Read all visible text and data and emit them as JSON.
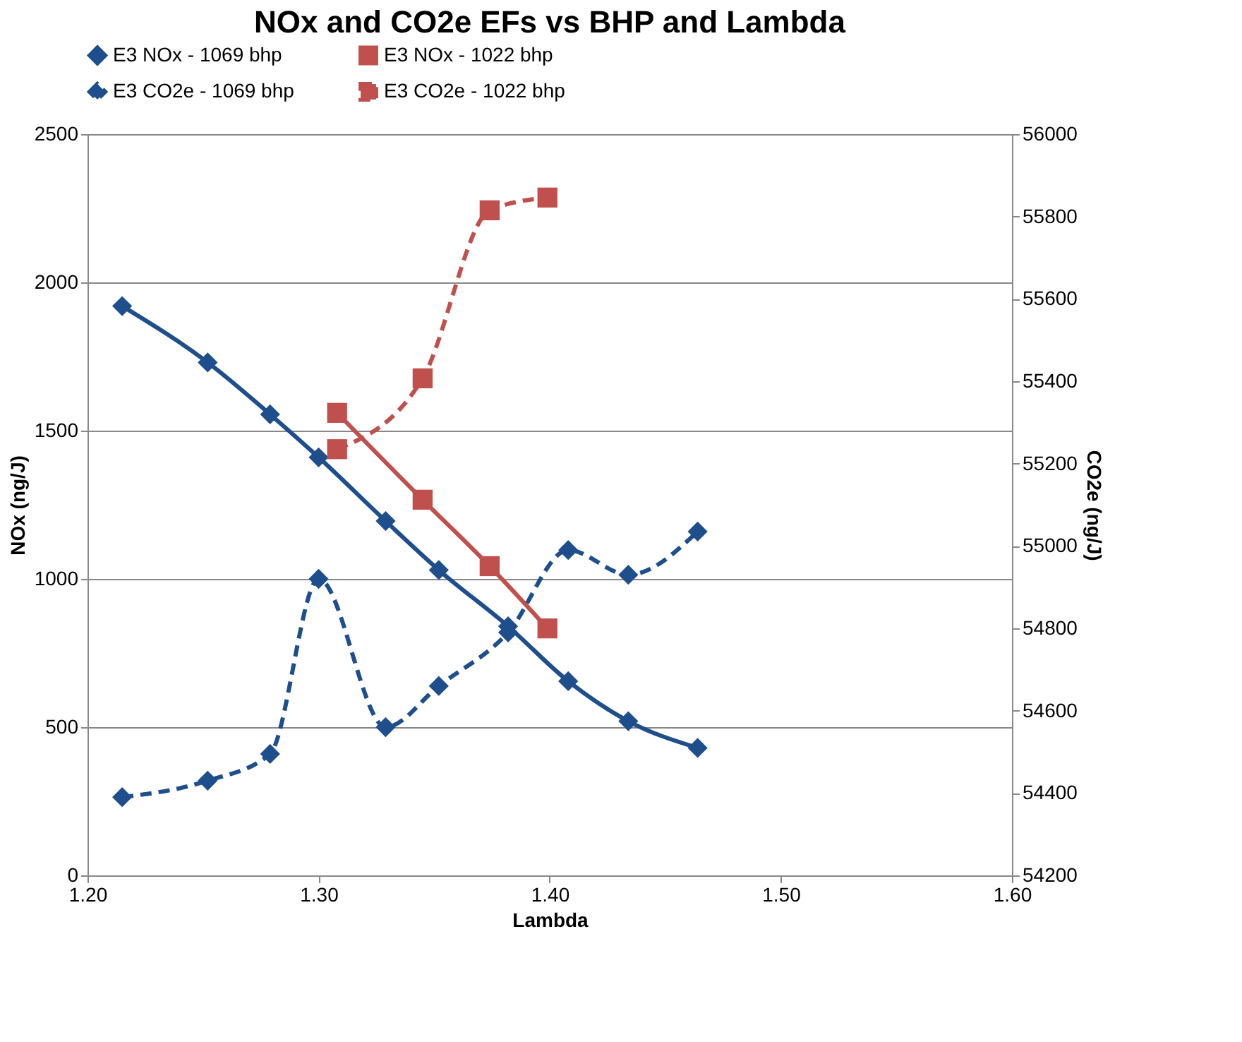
{
  "chart_data": {
    "type": "line",
    "title": "NOx and CO2e EFs vs BHP and Lambda",
    "xlabel": "Lambda",
    "ylabel": "NOx (ng/J)",
    "y2label": "CO2e (ng/J)",
    "xlim": [
      1.2,
      1.6
    ],
    "xticks": [
      {
        "value": 1.2,
        "label": "1.20"
      },
      {
        "value": 1.3,
        "label": "1.30"
      },
      {
        "value": 1.4,
        "label": "1.40"
      },
      {
        "value": 1.5,
        "label": "1.50"
      },
      {
        "value": 1.6,
        "label": "1.60"
      }
    ],
    "ylim": [
      0,
      2500
    ],
    "yticks": [
      0,
      500,
      1000,
      1500,
      2000,
      2500
    ],
    "y2lim": [
      54200,
      56000
    ],
    "y2ticks": [
      54200,
      54400,
      54600,
      54800,
      55000,
      55200,
      55400,
      55600,
      55800,
      56000
    ],
    "grid": "y",
    "legend": "top",
    "series": [
      {
        "name": "E3 NOx - 1069 bhp",
        "color": "#1f4e8c",
        "marker": "diamond",
        "line_style": "solid",
        "axis": "y",
        "x": [
          1.215,
          1.252,
          1.279,
          1.3,
          1.329,
          1.352,
          1.382,
          1.408,
          1.434,
          1.464
        ],
        "values": [
          1920,
          1730,
          1555,
          1410,
          1195,
          1030,
          840,
          655,
          520,
          430
        ]
      },
      {
        "name": "E3 NOx - 1022 bhp",
        "color": "#c0504d",
        "marker": "square",
        "line_style": "solid",
        "axis": "y",
        "x": [
          1.308,
          1.345,
          1.374,
          1.399
        ],
        "values": [
          1560,
          1267,
          1043,
          833
        ]
      },
      {
        "name": "E3 CO2e - 1069 bhp",
        "color": "#1f4e8c",
        "marker": "diamond",
        "line_style": "dashed",
        "axis": "y2",
        "x": [
          1.215,
          1.252,
          1.279,
          1.3,
          1.329,
          1.352,
          1.382,
          1.408,
          1.434,
          1.464
        ],
        "values": [
          54390,
          54430,
          54495,
          54920,
          54560,
          54660,
          54790,
          54990,
          54930,
          55035
        ]
      },
      {
        "name": "E3 CO2e - 1022 bhp",
        "color": "#c0504d",
        "marker": "square",
        "line_style": "dashed",
        "axis": "y2",
        "x": [
          1.308,
          1.345,
          1.374,
          1.399
        ],
        "values": [
          55235,
          55407,
          55815,
          55846
        ]
      }
    ]
  }
}
